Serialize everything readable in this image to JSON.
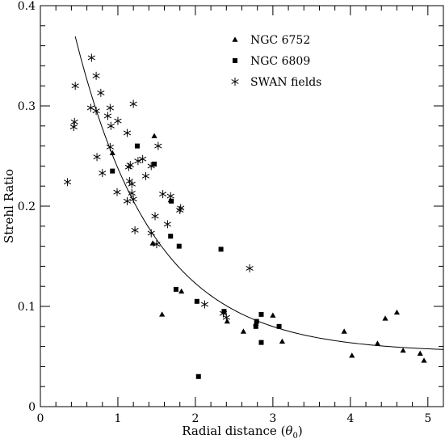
{
  "chart_data": {
    "type": "scatter",
    "xlabel": "Radial distance",
    "xlabel_symbol": "θ",
    "xlabel_subscript": "0",
    "ylabel": "Strehl Ratio",
    "xlim": [
      0,
      5.2
    ],
    "ylim": [
      0,
      0.4
    ],
    "xticks": [
      0,
      1,
      2,
      3,
      4,
      5
    ],
    "yticks": [
      0,
      0.1,
      0.2,
      0.3,
      0.4
    ],
    "xtick_labels": [
      "0",
      "1",
      "2",
      "3",
      "4",
      "5"
    ],
    "ytick_labels": [
      "0",
      "0.1",
      "0.2",
      "0.3",
      "0.4"
    ],
    "legend_position": "top-right",
    "series": [
      {
        "name": "NGC 6752",
        "marker": "triangle",
        "points": [
          [
            0.93,
            0.253
          ],
          [
            1.47,
            0.27
          ],
          [
            1.45,
            0.163
          ],
          [
            1.68,
            0.206
          ],
          [
            1.82,
            0.115
          ],
          [
            1.57,
            0.092
          ],
          [
            2.41,
            0.085
          ],
          [
            2.62,
            0.075
          ],
          [
            2.78,
            0.083
          ],
          [
            3.0,
            0.091
          ],
          [
            3.12,
            0.065
          ],
          [
            3.92,
            0.075
          ],
          [
            4.02,
            0.051
          ],
          [
            4.35,
            0.063
          ],
          [
            4.45,
            0.088
          ],
          [
            4.6,
            0.094
          ],
          [
            4.68,
            0.056
          ],
          [
            4.9,
            0.053
          ],
          [
            4.95,
            0.046
          ]
        ]
      },
      {
        "name": "NGC 6809",
        "marker": "square",
        "points": [
          [
            1.25,
            0.26
          ],
          [
            1.47,
            0.242
          ],
          [
            0.93,
            0.235
          ],
          [
            1.69,
            0.205
          ],
          [
            1.79,
            0.16
          ],
          [
            1.68,
            0.17
          ],
          [
            1.75,
            0.117
          ],
          [
            2.02,
            0.105
          ],
          [
            2.33,
            0.157
          ],
          [
            2.37,
            0.095
          ],
          [
            2.78,
            0.08
          ],
          [
            2.79,
            0.085
          ],
          [
            2.85,
            0.092
          ],
          [
            2.85,
            0.064
          ],
          [
            3.08,
            0.08
          ],
          [
            2.04,
            0.03
          ]
        ]
      },
      {
        "name": "SWAN fields",
        "marker": "asterisk",
        "points": [
          [
            0.66,
            0.348
          ],
          [
            0.72,
            0.33
          ],
          [
            0.45,
            0.32
          ],
          [
            0.78,
            0.313
          ],
          [
            1.2,
            0.302
          ],
          [
            0.65,
            0.298
          ],
          [
            0.72,
            0.295
          ],
          [
            0.9,
            0.298
          ],
          [
            0.44,
            0.284
          ],
          [
            0.43,
            0.279
          ],
          [
            0.87,
            0.29
          ],
          [
            0.91,
            0.28
          ],
          [
            1.0,
            0.285
          ],
          [
            0.9,
            0.259
          ],
          [
            1.12,
            0.273
          ],
          [
            0.73,
            0.249
          ],
          [
            1.32,
            0.247
          ],
          [
            1.26,
            0.245
          ],
          [
            1.16,
            0.241
          ],
          [
            1.14,
            0.239
          ],
          [
            1.52,
            0.26
          ],
          [
            0.35,
            0.224
          ],
          [
            0.8,
            0.233
          ],
          [
            1.36,
            0.23
          ],
          [
            1.15,
            0.225
          ],
          [
            1.18,
            0.222
          ],
          [
            1.43,
            0.24
          ],
          [
            0.99,
            0.214
          ],
          [
            1.18,
            0.213
          ],
          [
            1.12,
            0.205
          ],
          [
            1.58,
            0.212
          ],
          [
            1.68,
            0.21
          ],
          [
            1.2,
            0.207
          ],
          [
            1.48,
            0.19
          ],
          [
            1.64,
            0.182
          ],
          [
            1.81,
            0.198
          ],
          [
            1.8,
            0.196
          ],
          [
            1.43,
            0.173
          ],
          [
            1.22,
            0.176
          ],
          [
            1.5,
            0.162
          ],
          [
            2.12,
            0.102
          ],
          [
            2.36,
            0.093
          ],
          [
            2.4,
            0.089
          ],
          [
            2.7,
            0.138
          ]
        ]
      }
    ],
    "fit_curve": {
      "model": "exponential decay",
      "equation_params": {
        "a": 0.49,
        "k": 0.98,
        "c": 0.054
      },
      "x_range": [
        0.45,
        5.2
      ]
    }
  }
}
